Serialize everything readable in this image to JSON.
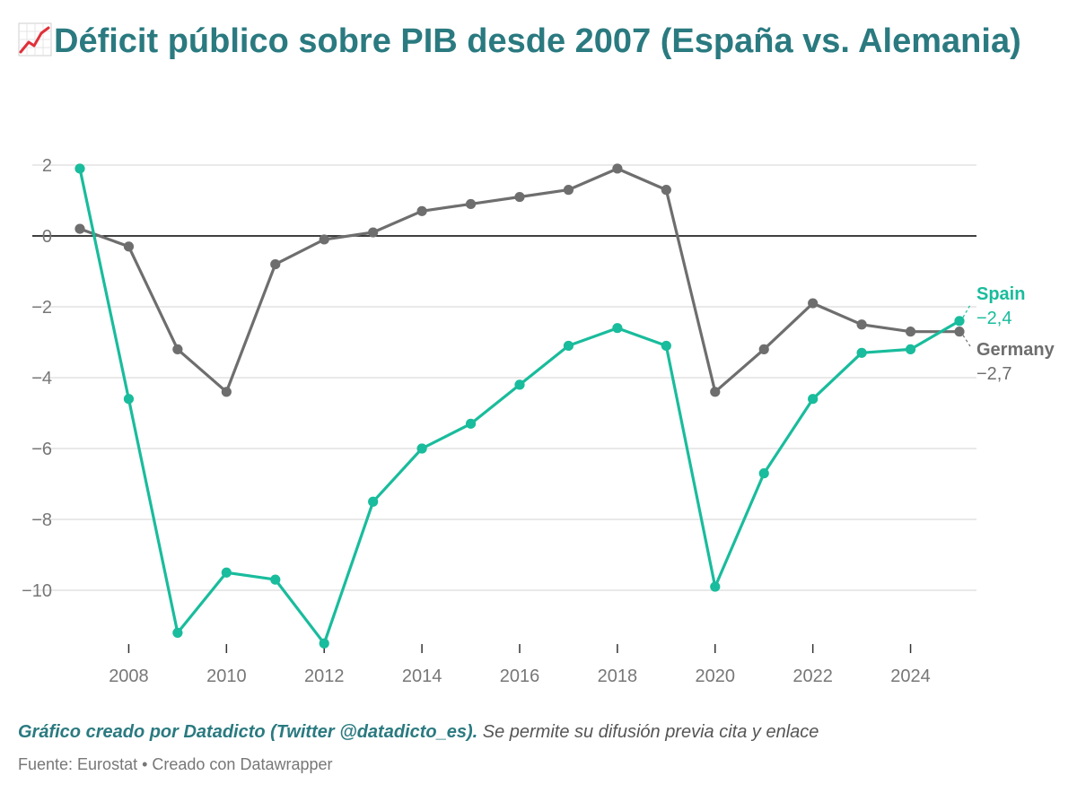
{
  "title": "Déficit público sobre PIB desde 2007 (España vs. Alemania)",
  "title_icon": "chart-increasing-icon",
  "colors": {
    "spain": "#19bc9c",
    "germany": "#6e6e6e",
    "title": "#2a7a80",
    "grid": "#e2e2e2",
    "zero_line": "#000000"
  },
  "credit": {
    "strong": "Gráfico creado por Datadicto (Twitter @datadicto_es).",
    "rest": "Se permite su difusión previa cita y enlace"
  },
  "footer": "Fuente: Eurostat • Creado con Datawrapper",
  "chart_data": {
    "type": "line",
    "x": [
      2007,
      2008,
      2009,
      2010,
      2011,
      2012,
      2013,
      2014,
      2015,
      2016,
      2017,
      2018,
      2019,
      2020,
      2021,
      2022,
      2023,
      2024,
      2025
    ],
    "series": [
      {
        "name": "Spain",
        "end_label": "−2,4",
        "values": [
          1.9,
          -4.6,
          -11.2,
          -9.5,
          -9.7,
          -11.5,
          -7.5,
          -6.0,
          -5.3,
          -4.2,
          -3.1,
          -2.6,
          -3.1,
          -9.9,
          -6.7,
          -4.6,
          -3.3,
          -3.2,
          -2.4
        ]
      },
      {
        "name": "Germany",
        "end_label": "−2,7",
        "values": [
          0.2,
          -0.3,
          -3.2,
          -4.4,
          -0.8,
          -0.1,
          0.1,
          0.7,
          0.9,
          1.1,
          1.3,
          1.9,
          1.3,
          -4.4,
          -3.2,
          -1.9,
          -2.5,
          -2.7,
          -2.7
        ]
      }
    ],
    "y_ticks": [
      2,
      0,
      -2,
      -4,
      -6,
      -8,
      -10
    ],
    "y_tick_labels": [
      "2",
      "0",
      "−2",
      "−4",
      "−6",
      "−8",
      "−10"
    ],
    "x_ticks": [
      2008,
      2010,
      2012,
      2014,
      2016,
      2018,
      2020,
      2022,
      2024
    ],
    "x_tick_labels": [
      "2008",
      "2010",
      "2012",
      "2014",
      "2016",
      "2018",
      "2020",
      "2022",
      "2024"
    ],
    "xlim": [
      2007,
      2025
    ],
    "ylim": [
      -11.5,
      2
    ],
    "grid": true,
    "zero_line": true,
    "legend": "direct labels at right end of lines"
  }
}
